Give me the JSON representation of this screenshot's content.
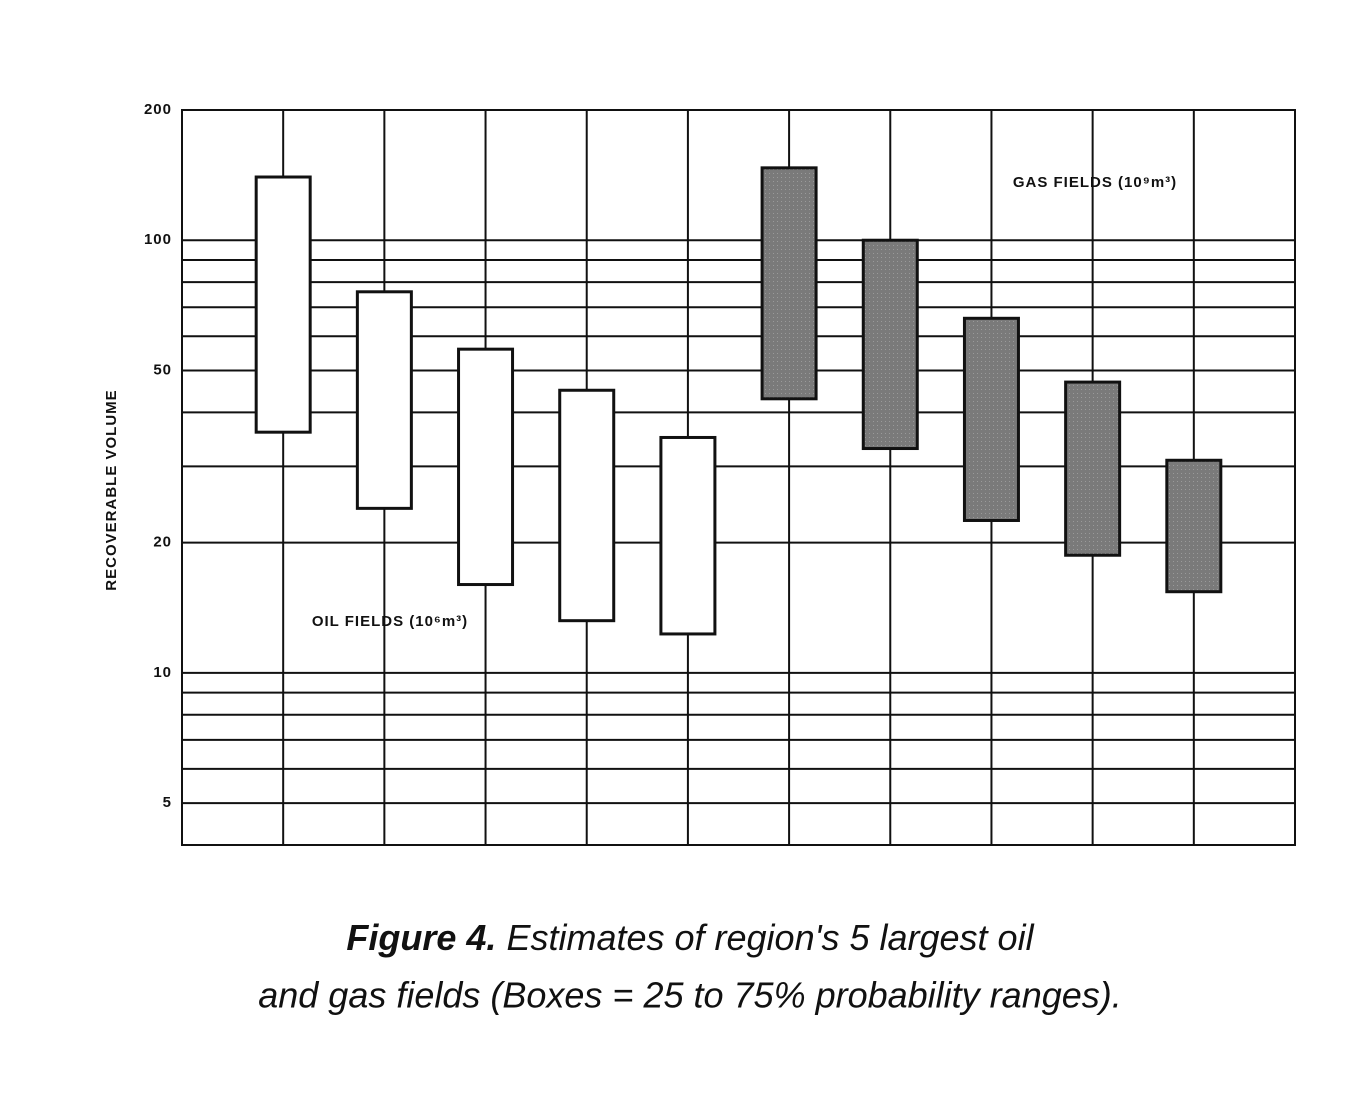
{
  "chart_data": {
    "type": "range-box",
    "y_label": "RECOVERABLE VOLUME",
    "log_scale": true,
    "grid": true,
    "ylim": [
      4,
      200
    ],
    "yticks": [
      5,
      10,
      20,
      50,
      100,
      200
    ],
    "minor_yticks": [
      6,
      7,
      8,
      9,
      30,
      40,
      60,
      70,
      80,
      90
    ],
    "series": [
      {
        "name": "OIL FIELDS (10⁶m³)",
        "color": "#ffffff",
        "low": [
          36,
          24,
          16,
          13.2,
          12.3
        ],
        "high": [
          140,
          76,
          56,
          45,
          35
        ]
      },
      {
        "name": "GAS FIELDS (10⁹m³)",
        "color": "#7a7a7a",
        "low": [
          43,
          33,
          22.5,
          18.7,
          15.4
        ],
        "high": [
          147,
          100,
          66,
          47,
          31
        ]
      }
    ],
    "caption_label": "Figure 4.",
    "caption": "Estimates of region's 5 largest oil and gas fields (Boxes = 25 to 75% probability ranges)."
  }
}
